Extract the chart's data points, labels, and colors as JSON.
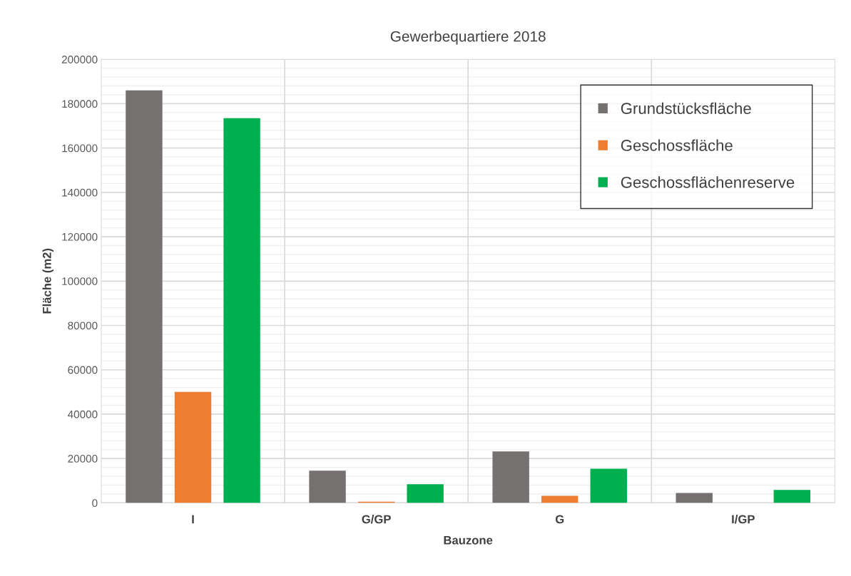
{
  "chart_data": {
    "type": "bar",
    "title": "Gewerbequartiere 2018",
    "xlabel": "Bauzone",
    "ylabel": "Fläche (m2)",
    "categories": [
      "I",
      "G/GP",
      "G",
      "I/GP"
    ],
    "series": [
      {
        "name": "Grundstücksfläche",
        "color": "#767171",
        "values": [
          186000,
          14500,
          23200,
          4500
        ]
      },
      {
        "name": "Geschossfläche",
        "color": "#ed7d31",
        "values": [
          50000,
          500,
          3200,
          0
        ]
      },
      {
        "name": "Geschossflächenreserve",
        "color": "#00b050",
        "values": [
          173500,
          8400,
          15400,
          5800
        ]
      }
    ],
    "ylim": [
      0,
      200000
    ],
    "yticks": [
      0,
      20000,
      40000,
      60000,
      80000,
      100000,
      120000,
      140000,
      160000,
      180000,
      200000
    ],
    "grid": true,
    "legend": "top right"
  }
}
